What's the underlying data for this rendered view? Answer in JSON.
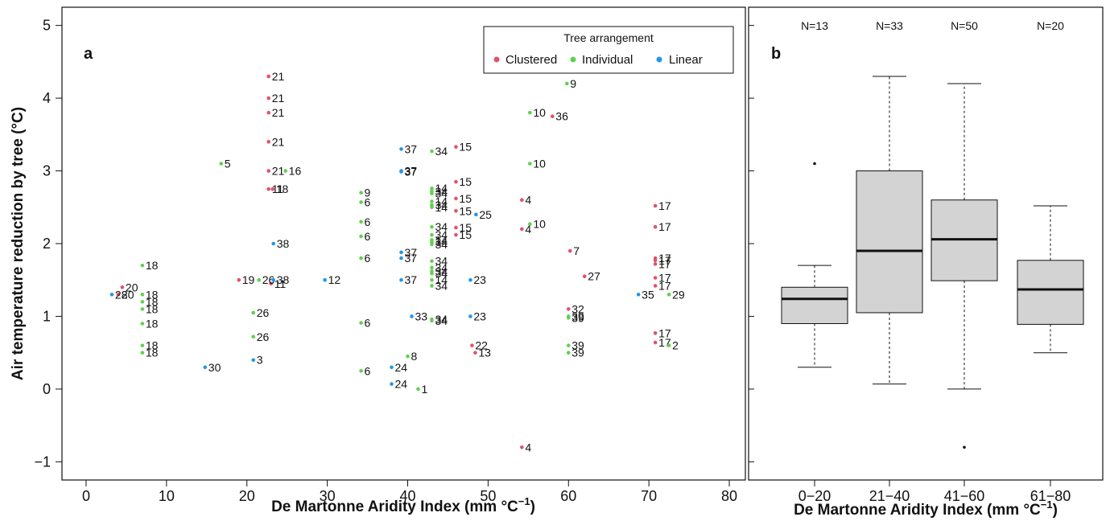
{
  "chart_data": [
    {
      "panel": "a",
      "type": "scatter",
      "xlabel": "De Martonne Aridity Index (mm °C",
      "xlabel_sup": "−1",
      "xlabel_close": ")",
      "ylabel": "Air temperature reduction by tree (°C)",
      "xlim": [
        -3,
        82
      ],
      "ylim": [
        -1.25,
        5.25
      ],
      "xticks": [
        0,
        10,
        20,
        30,
        40,
        50,
        60,
        70,
        80
      ],
      "yticks": [
        -1,
        0,
        1,
        2,
        3,
        4,
        5
      ],
      "legend": {
        "title": "Tree arrangement",
        "position": "top-right",
        "entries": [
          {
            "name": "Clustered",
            "color": "#df536b"
          },
          {
            "name": "Individual",
            "color": "#61d04f"
          },
          {
            "name": "Linear",
            "color": "#2297e6"
          }
        ]
      },
      "series": [
        {
          "name": "Clustered",
          "color": "#df536b",
          "points": [
            {
              "x": 22.7,
              "y": 4.3,
              "label": "21"
            },
            {
              "x": 22.7,
              "y": 4.0,
              "label": "21"
            },
            {
              "x": 22.7,
              "y": 3.8,
              "label": "21"
            },
            {
              "x": 22.7,
              "y": 3.4,
              "label": "21"
            },
            {
              "x": 22.7,
              "y": 3.0,
              "label": "21"
            },
            {
              "x": 22.7,
              "y": 2.75,
              "label": "11"
            },
            {
              "x": 23.2,
              "y": 2.75,
              "label": "18"
            },
            {
              "x": 19.0,
              "y": 1.5,
              "label": "19"
            },
            {
              "x": 23.0,
              "y": 1.45,
              "label": "11"
            },
            {
              "x": 4.5,
              "y": 1.4,
              "label": "20"
            },
            {
              "x": 4.0,
              "y": 1.3,
              "label": "20"
            },
            {
              "x": 46.0,
              "y": 3.33,
              "label": "15"
            },
            {
              "x": 46.0,
              "y": 2.85,
              "label": "15"
            },
            {
              "x": 46.0,
              "y": 2.62,
              "label": "15"
            },
            {
              "x": 46.0,
              "y": 2.45,
              "label": "15"
            },
            {
              "x": 46.0,
              "y": 2.22,
              "label": "15"
            },
            {
              "x": 46.0,
              "y": 2.12,
              "label": "15"
            },
            {
              "x": 54.2,
              "y": 2.6,
              "label": "4"
            },
            {
              "x": 54.2,
              "y": 2.2,
              "label": "4"
            },
            {
              "x": 54.2,
              "y": -0.8,
              "label": "4"
            },
            {
              "x": 58.0,
              "y": 3.75,
              "label": "36"
            },
            {
              "x": 60.2,
              "y": 1.9,
              "label": "7"
            },
            {
              "x": 62.0,
              "y": 1.55,
              "label": "27"
            },
            {
              "x": 60.0,
              "y": 1.1,
              "label": "32"
            },
            {
              "x": 48.0,
              "y": 0.6,
              "label": "22"
            },
            {
              "x": 48.4,
              "y": 0.5,
              "label": "13"
            },
            {
              "x": 70.8,
              "y": 2.52,
              "label": "17"
            },
            {
              "x": 70.8,
              "y": 2.23,
              "label": "17"
            },
            {
              "x": 70.8,
              "y": 1.8,
              "label": "17"
            },
            {
              "x": 70.8,
              "y": 1.77,
              "label": "17"
            },
            {
              "x": 70.8,
              "y": 1.72,
              "label": "17"
            },
            {
              "x": 70.8,
              "y": 1.53,
              "label": "17"
            },
            {
              "x": 70.8,
              "y": 1.42,
              "label": "17"
            },
            {
              "x": 70.8,
              "y": 0.77,
              "label": "17"
            },
            {
              "x": 70.8,
              "y": 0.64,
              "label": "17"
            }
          ]
        },
        {
          "name": "Individual",
          "color": "#61d04f",
          "points": [
            {
              "x": 16.8,
              "y": 3.1,
              "label": "5"
            },
            {
              "x": 24.8,
              "y": 3.0,
              "label": "16"
            },
            {
              "x": 21.5,
              "y": 1.5,
              "label": "26"
            },
            {
              "x": 20.8,
              "y": 1.05,
              "label": "26"
            },
            {
              "x": 20.8,
              "y": 0.72,
              "label": "26"
            },
            {
              "x": 7.0,
              "y": 1.7,
              "label": "18"
            },
            {
              "x": 7.0,
              "y": 1.3,
              "label": "18"
            },
            {
              "x": 7.0,
              "y": 1.2,
              "label": "18"
            },
            {
              "x": 7.0,
              "y": 1.1,
              "label": "18"
            },
            {
              "x": 7.0,
              "y": 0.9,
              "label": "18"
            },
            {
              "x": 7.0,
              "y": 0.6,
              "label": "18"
            },
            {
              "x": 7.0,
              "y": 0.5,
              "label": "18"
            },
            {
              "x": 34.2,
              "y": 2.7,
              "label": "9"
            },
            {
              "x": 34.2,
              "y": 2.57,
              "label": "6"
            },
            {
              "x": 34.2,
              "y": 2.3,
              "label": "6"
            },
            {
              "x": 34.2,
              "y": 2.1,
              "label": "6"
            },
            {
              "x": 34.2,
              "y": 1.8,
              "label": "6"
            },
            {
              "x": 34.2,
              "y": 0.91,
              "label": "6"
            },
            {
              "x": 34.2,
              "y": 0.25,
              "label": "6"
            },
            {
              "x": 40.0,
              "y": 0.45,
              "label": "8"
            },
            {
              "x": 41.3,
              "y": 0.0,
              "label": "1"
            },
            {
              "x": 43.0,
              "y": 3.27,
              "label": "34"
            },
            {
              "x": 43.0,
              "y": 2.76,
              "label": "14"
            },
            {
              "x": 43.0,
              "y": 2.72,
              "label": "34"
            },
            {
              "x": 43.0,
              "y": 2.69,
              "label": "34"
            },
            {
              "x": 43.0,
              "y": 2.58,
              "label": "14"
            },
            {
              "x": 43.0,
              "y": 2.53,
              "label": "34"
            },
            {
              "x": 43.0,
              "y": 2.5,
              "label": "14"
            },
            {
              "x": 43.0,
              "y": 2.23,
              "label": "34"
            },
            {
              "x": 43.0,
              "y": 2.12,
              "label": "34"
            },
            {
              "x": 43.0,
              "y": 2.05,
              "label": "14"
            },
            {
              "x": 43.0,
              "y": 2.02,
              "label": "34"
            },
            {
              "x": 43.0,
              "y": 1.99,
              "label": "34"
            },
            {
              "x": 43.0,
              "y": 1.76,
              "label": "34"
            },
            {
              "x": 43.0,
              "y": 1.67,
              "label": "34"
            },
            {
              "x": 43.0,
              "y": 1.62,
              "label": "34"
            },
            {
              "x": 43.0,
              "y": 1.59,
              "label": "34"
            },
            {
              "x": 43.0,
              "y": 1.5,
              "label": "14"
            },
            {
              "x": 43.0,
              "y": 1.42,
              "label": "34"
            },
            {
              "x": 43.0,
              "y": 0.96,
              "label": "34"
            },
            {
              "x": 43.0,
              "y": 0.94,
              "label": "34"
            },
            {
              "x": 59.8,
              "y": 4.2,
              "label": "9"
            },
            {
              "x": 55.2,
              "y": 3.8,
              "label": "10"
            },
            {
              "x": 55.2,
              "y": 3.1,
              "label": "10"
            },
            {
              "x": 55.2,
              "y": 2.27,
              "label": "10"
            },
            {
              "x": 60.0,
              "y": 1.0,
              "label": "39"
            },
            {
              "x": 60.0,
              "y": 0.98,
              "label": "39"
            },
            {
              "x": 60.0,
              "y": 0.6,
              "label": "39"
            },
            {
              "x": 60.0,
              "y": 0.5,
              "label": "39"
            },
            {
              "x": 72.5,
              "y": 1.3,
              "label": "29"
            },
            {
              "x": 72.5,
              "y": 0.6,
              "label": "2"
            }
          ]
        },
        {
          "name": "Linear",
          "color": "#2297e6",
          "points": [
            {
              "x": 3.2,
              "y": 1.3,
              "label": "28"
            },
            {
              "x": 14.8,
              "y": 0.3,
              "label": "30"
            },
            {
              "x": 20.8,
              "y": 0.4,
              "label": "3"
            },
            {
              "x": 23.3,
              "y": 2.0,
              "label": "38"
            },
            {
              "x": 23.3,
              "y": 1.5,
              "label": "38"
            },
            {
              "x": 29.7,
              "y": 1.5,
              "label": "12"
            },
            {
              "x": 39.2,
              "y": 3.3,
              "label": "37"
            },
            {
              "x": 39.2,
              "y": 3.0,
              "label": "37"
            },
            {
              "x": 39.2,
              "y": 2.99,
              "label": "37"
            },
            {
              "x": 39.2,
              "y": 1.88,
              "label": "37"
            },
            {
              "x": 39.2,
              "y": 1.8,
              "label": "37"
            },
            {
              "x": 39.2,
              "y": 1.5,
              "label": "37"
            },
            {
              "x": 40.5,
              "y": 1.0,
              "label": "33"
            },
            {
              "x": 38.0,
              "y": 0.3,
              "label": "24"
            },
            {
              "x": 38.0,
              "y": 0.07,
              "label": "24"
            },
            {
              "x": 48.5,
              "y": 2.4,
              "label": "25"
            },
            {
              "x": 47.8,
              "y": 1.5,
              "label": "23"
            },
            {
              "x": 47.8,
              "y": 1.0,
              "label": "23"
            },
            {
              "x": 68.7,
              "y": 1.3,
              "label": "35"
            }
          ]
        }
      ]
    },
    {
      "panel": "b",
      "type": "box",
      "xlabel": "De Martonne Aridity Index (mm °C",
      "xlabel_sup": "−1",
      "xlabel_close": ")",
      "ylim": [
        -1.25,
        5.25
      ],
      "categories": [
        "0−20",
        "21−40",
        "41−60",
        "61−80"
      ],
      "n_labels": [
        "N=13",
        "N=33",
        "N=50",
        "N=20"
      ],
      "fill": "#d3d3d3",
      "boxes": [
        {
          "whisker_low": 0.3,
          "q1": 0.9,
          "median": 1.24,
          "q3": 1.4,
          "whisker_high": 1.7,
          "outliers": [
            3.1
          ]
        },
        {
          "whisker_low": 0.07,
          "q1": 1.05,
          "median": 1.9,
          "q3": 3.0,
          "whisker_high": 4.3,
          "outliers": []
        },
        {
          "whisker_low": 0.0,
          "q1": 1.49,
          "median": 2.06,
          "q3": 2.6,
          "whisker_high": 4.2,
          "outliers": [
            -0.8
          ]
        },
        {
          "whisker_low": 0.5,
          "q1": 0.89,
          "median": 1.37,
          "q3": 1.77,
          "whisker_high": 2.52,
          "outliers": []
        }
      ]
    }
  ]
}
